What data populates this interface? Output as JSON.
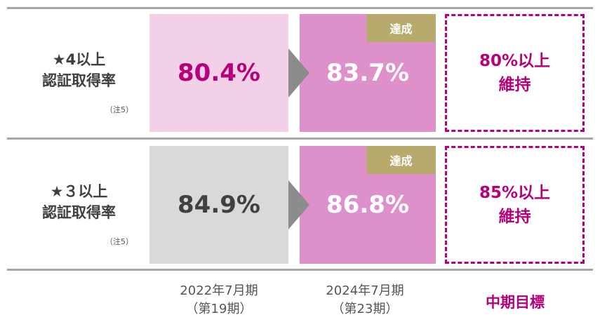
{
  "rows": [
    {
      "label": [
        "★4以上",
        "認証取得率"
      ],
      "note": "（注5）",
      "baseline": "80.4%",
      "result": "83.7%",
      "badge": "達成",
      "target": [
        "80%以上",
        "維持"
      ]
    },
    {
      "label": [
        "★３以上",
        "認証取得率"
      ],
      "note": "（注5）",
      "baseline": "84.9%",
      "result": "86.8%",
      "badge": "達成",
      "target": [
        "85%以上",
        "維持"
      ]
    }
  ],
  "columns": [
    [
      "2022年7月期",
      "（第19期）"
    ],
    [
      "2024年7月期",
      "（第23期）"
    ],
    [
      "中期目標"
    ]
  ]
}
